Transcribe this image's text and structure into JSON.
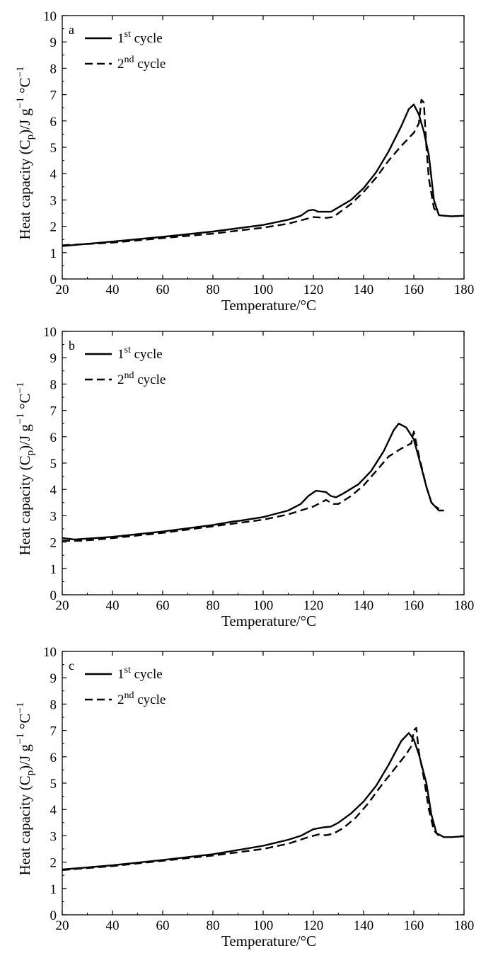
{
  "chart_data": [
    {
      "type": "line",
      "panel_label": "a",
      "xlabel": "Temperature/°C",
      "ylabel": "Heat capacity (Cp)/J g−1 °C−1",
      "xlim": [
        20,
        180
      ],
      "ylim": [
        0,
        10
      ],
      "xticks": [
        "20",
        "40",
        "60",
        "80",
        "100",
        "120",
        "140",
        "160",
        "180"
      ],
      "yticks": [
        "0",
        "1",
        "2",
        "3",
        "4",
        "5",
        "6",
        "7",
        "8",
        "9",
        "10"
      ],
      "legend_position": "top-left",
      "series": [
        {
          "name": "1st cycle",
          "style": "solid",
          "points": [
            [
              20,
              1.25
            ],
            [
              40,
              1.42
            ],
            [
              60,
              1.6
            ],
            [
              80,
              1.8
            ],
            [
              100,
              2.05
            ],
            [
              110,
              2.25
            ],
            [
              115,
              2.4
            ],
            [
              118,
              2.6
            ],
            [
              120,
              2.63
            ],
            [
              122,
              2.55
            ],
            [
              125,
              2.55
            ],
            [
              127,
              2.55
            ],
            [
              130,
              2.72
            ],
            [
              135,
              3.0
            ],
            [
              140,
              3.45
            ],
            [
              145,
              4.05
            ],
            [
              150,
              4.85
            ],
            [
              155,
              5.8
            ],
            [
              158,
              6.45
            ],
            [
              160,
              6.62
            ],
            [
              162,
              6.25
            ],
            [
              164,
              5.6
            ],
            [
              166,
              4.7
            ],
            [
              168,
              3.0
            ],
            [
              170,
              2.42
            ],
            [
              175,
              2.38
            ],
            [
              180,
              2.4
            ]
          ]
        },
        {
          "name": "2nd cycle",
          "style": "dashed",
          "points": [
            [
              20,
              1.28
            ],
            [
              40,
              1.38
            ],
            [
              60,
              1.55
            ],
            [
              80,
              1.72
            ],
            [
              100,
              1.95
            ],
            [
              110,
              2.1
            ],
            [
              120,
              2.35
            ],
            [
              125,
              2.32
            ],
            [
              128,
              2.35
            ],
            [
              130,
              2.5
            ],
            [
              135,
              2.85
            ],
            [
              140,
              3.3
            ],
            [
              145,
              3.85
            ],
            [
              150,
              4.5
            ],
            [
              155,
              5.05
            ],
            [
              160,
              5.55
            ],
            [
              162,
              5.9
            ],
            [
              163,
              6.8
            ],
            [
              164,
              6.7
            ],
            [
              165,
              5.0
            ],
            [
              166,
              3.8
            ],
            [
              168,
              2.7
            ],
            [
              170,
              2.45
            ]
          ]
        }
      ]
    },
    {
      "type": "line",
      "panel_label": "b",
      "xlabel": "Temperature/°C",
      "ylabel": "Heat capacity (Cp)/J g−1 °C−1",
      "xlim": [
        20,
        180
      ],
      "ylim": [
        0,
        10
      ],
      "xticks": [
        "20",
        "40",
        "60",
        "80",
        "100",
        "120",
        "140",
        "160",
        "180"
      ],
      "yticks": [
        "0",
        "1",
        "2",
        "3",
        "4",
        "5",
        "6",
        "7",
        "8",
        "9",
        "10"
      ],
      "legend_position": "top-left",
      "series": [
        {
          "name": "1st cycle",
          "style": "solid",
          "points": [
            [
              20,
              2.15
            ],
            [
              25,
              2.1
            ],
            [
              40,
              2.2
            ],
            [
              60,
              2.4
            ],
            [
              80,
              2.65
            ],
            [
              88,
              2.78
            ],
            [
              90,
              2.8
            ],
            [
              100,
              2.95
            ],
            [
              110,
              3.2
            ],
            [
              115,
              3.45
            ],
            [
              118,
              3.75
            ],
            [
              121,
              3.95
            ],
            [
              125,
              3.9
            ],
            [
              127,
              3.75
            ],
            [
              129,
              3.7
            ],
            [
              132,
              3.85
            ],
            [
              138,
              4.2
            ],
            [
              143,
              4.7
            ],
            [
              148,
              5.45
            ],
            [
              152,
              6.25
            ],
            [
              154,
              6.5
            ],
            [
              157,
              6.35
            ],
            [
              160,
              5.9
            ],
            [
              162,
              5.2
            ],
            [
              165,
              4.1
            ],
            [
              167,
              3.5
            ],
            [
              170,
              3.2
            ],
            [
              172,
              3.2
            ]
          ]
        },
        {
          "name": "2nd cycle",
          "style": "dashed",
          "points": [
            [
              20,
              2.05
            ],
            [
              28,
              2.05
            ],
            [
              40,
              2.15
            ],
            [
              60,
              2.35
            ],
            [
              80,
              2.6
            ],
            [
              100,
              2.85
            ],
            [
              110,
              3.05
            ],
            [
              120,
              3.35
            ],
            [
              125,
              3.6
            ],
            [
              128,
              3.45
            ],
            [
              130,
              3.45
            ],
            [
              135,
              3.75
            ],
            [
              140,
              4.15
            ],
            [
              145,
              4.7
            ],
            [
              150,
              5.25
            ],
            [
              155,
              5.55
            ],
            [
              159,
              5.75
            ],
            [
              160,
              6.2
            ],
            [
              162,
              5.3
            ],
            [
              165,
              4.1
            ],
            [
              167,
              3.5
            ],
            [
              170,
              3.25
            ]
          ]
        }
      ]
    },
    {
      "type": "line",
      "panel_label": "c",
      "xlabel": "Temperature/°C",
      "ylabel": "Heat capacity (Cp)/J g−1 °C−1",
      "xlim": [
        20,
        180
      ],
      "ylim": [
        0,
        10
      ],
      "xticks": [
        "20",
        "40",
        "60",
        "80",
        "100",
        "120",
        "140",
        "160",
        "180"
      ],
      "yticks": [
        "0",
        "1",
        "2",
        "3",
        "4",
        "5",
        "6",
        "7",
        "8",
        "9",
        "10"
      ],
      "legend_position": "top-left",
      "series": [
        {
          "name": "1st cycle",
          "style": "solid",
          "points": [
            [
              20,
              1.72
            ],
            [
              40,
              1.88
            ],
            [
              60,
              2.08
            ],
            [
              80,
              2.3
            ],
            [
              100,
              2.62
            ],
            [
              110,
              2.85
            ],
            [
              115,
              3.0
            ],
            [
              118,
              3.15
            ],
            [
              120,
              3.25
            ],
            [
              124,
              3.32
            ],
            [
              127,
              3.35
            ],
            [
              130,
              3.5
            ],
            [
              135,
              3.85
            ],
            [
              140,
              4.3
            ],
            [
              145,
              4.9
            ],
            [
              150,
              5.7
            ],
            [
              155,
              6.6
            ],
            [
              158,
              6.9
            ],
            [
              160,
              6.65
            ],
            [
              162,
              6.1
            ],
            [
              165,
              5.0
            ],
            [
              167,
              3.8
            ],
            [
              169,
              3.1
            ],
            [
              172,
              2.95
            ],
            [
              175,
              2.95
            ],
            [
              180,
              2.98
            ]
          ]
        },
        {
          "name": "2nd cycle",
          "style": "dashed",
          "points": [
            [
              20,
              1.7
            ],
            [
              40,
              1.85
            ],
            [
              60,
              2.05
            ],
            [
              80,
              2.25
            ],
            [
              100,
              2.5
            ],
            [
              110,
              2.7
            ],
            [
              118,
              2.95
            ],
            [
              122,
              3.05
            ],
            [
              125,
              3.02
            ],
            [
              128,
              3.08
            ],
            [
              132,
              3.3
            ],
            [
              137,
              3.7
            ],
            [
              142,
              4.25
            ],
            [
              147,
              4.9
            ],
            [
              152,
              5.5
            ],
            [
              157,
              6.1
            ],
            [
              159,
              6.4
            ],
            [
              160,
              7.0
            ],
            [
              161,
              7.1
            ],
            [
              162,
              6.2
            ],
            [
              164,
              5.2
            ],
            [
              166,
              4.0
            ],
            [
              168,
              3.2
            ],
            [
              170,
              3.0
            ]
          ]
        }
      ]
    }
  ]
}
